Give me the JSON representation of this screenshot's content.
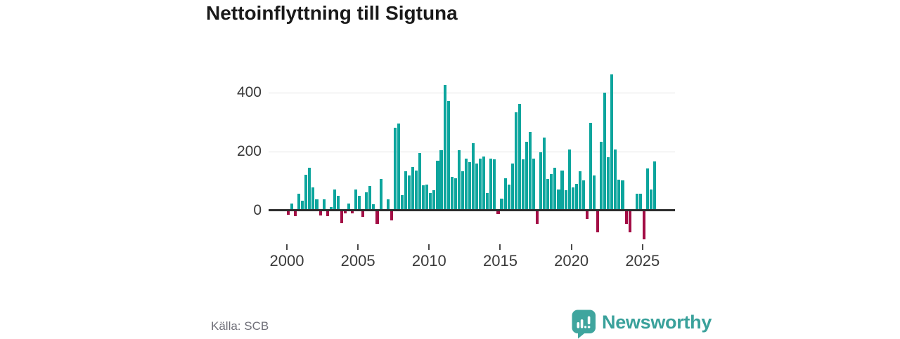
{
  "title": "Nettoinflyttning till Sigtuna",
  "source": "Källa: SCB",
  "branding": {
    "name": "Newsworthy"
  },
  "colors": {
    "positive_bar": "#0ca59d",
    "negative_bar": "#a30d45",
    "axis": "#2d2d2d",
    "gridline": "#e4e4e4",
    "title_text": "#1a1a1a",
    "tick_text": "#3a3a3a",
    "source_text": "#6f6f78",
    "brand_teal": "#3aa19b"
  },
  "chart_data": {
    "type": "bar",
    "title": "Nettoinflyttning till Sigtuna",
    "frequency": "quarterly",
    "x_tick_labels": [
      "2000",
      "2005",
      "2010",
      "2015",
      "2020",
      "2025"
    ],
    "y_tick_labels": [
      "0",
      "200",
      "400"
    ],
    "ylim": [
      -120,
      490
    ],
    "grid": "horizontal",
    "legend": "none",
    "years": [
      {
        "year": 2000,
        "quarters": [
          -11,
          23,
          -17,
          56
        ]
      },
      {
        "year": 2001,
        "quarters": [
          33,
          121,
          144,
          77
        ]
      },
      {
        "year": 2002,
        "quarters": [
          36,
          -14,
          38,
          -17
        ]
      },
      {
        "year": 2003,
        "quarters": [
          10,
          71,
          48,
          -40
        ]
      },
      {
        "year": 2004,
        "quarters": [
          -8,
          22,
          -6,
          71
        ]
      },
      {
        "year": 2005,
        "quarters": [
          50,
          -20,
          60,
          83
        ]
      },
      {
        "year": 2006,
        "quarters": [
          21,
          -43,
          107,
          2
        ]
      },
      {
        "year": 2007,
        "quarters": [
          37,
          -31,
          280,
          295
        ]
      },
      {
        "year": 2008,
        "quarters": [
          52,
          131,
          119,
          147
        ]
      },
      {
        "year": 2009,
        "quarters": [
          135,
          195,
          85,
          87
        ]
      },
      {
        "year": 2010,
        "quarters": [
          59,
          67,
          168,
          203
        ]
      },
      {
        "year": 2011,
        "quarters": [
          426,
          371,
          113,
          109
        ]
      },
      {
        "year": 2012,
        "quarters": [
          203,
          131,
          176,
          162
        ]
      },
      {
        "year": 2013,
        "quarters": [
          228,
          158,
          174,
          182
        ]
      },
      {
        "year": 2014,
        "quarters": [
          59,
          176,
          172,
          -10
        ]
      },
      {
        "year": 2015,
        "quarters": [
          40,
          109,
          87,
          159
        ]
      },
      {
        "year": 2016,
        "quarters": [
          333,
          360,
          172,
          232
        ]
      },
      {
        "year": 2017,
        "quarters": [
          266,
          175,
          -42,
          196
        ]
      },
      {
        "year": 2018,
        "quarters": [
          246,
          105,
          123,
          143
        ]
      },
      {
        "year": 2019,
        "quarters": [
          71,
          135,
          69,
          206
        ]
      },
      {
        "year": 2020,
        "quarters": [
          77,
          89,
          133,
          101
        ]
      },
      {
        "year": 2021,
        "quarters": [
          -25,
          297,
          117,
          -71
        ]
      },
      {
        "year": 2022,
        "quarters": [
          232,
          400,
          180,
          460
        ]
      },
      {
        "year": 2023,
        "quarters": [
          207,
          103,
          101,
          -42
        ]
      },
      {
        "year": 2024,
        "quarters": [
          -71,
          3,
          57,
          55
        ]
      },
      {
        "year": 2025,
        "quarters": [
          -95,
          141,
          71,
          165
        ]
      }
    ]
  }
}
